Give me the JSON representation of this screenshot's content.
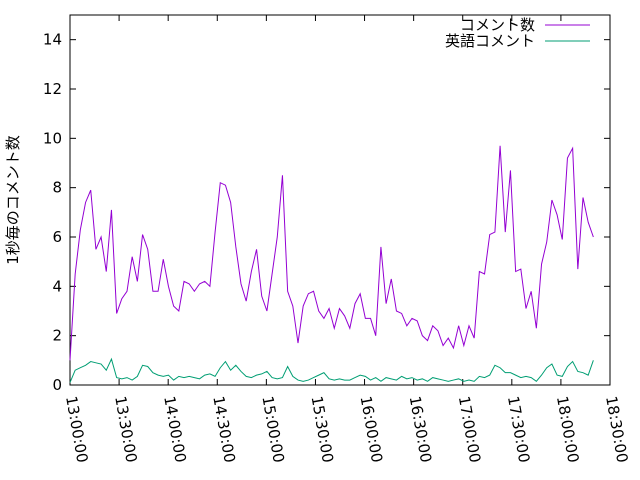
{
  "chart_data": {
    "type": "line",
    "ylabel": "1秒毎のコメント数",
    "x": [
      "13:00:00",
      "13:03:10",
      "13:06:20",
      "13:09:30",
      "13:12:40",
      "13:15:50",
      "13:19:00",
      "13:22:10",
      "13:25:20",
      "13:28:30",
      "13:31:40",
      "13:34:50",
      "13:38:00",
      "13:41:10",
      "13:44:20",
      "13:47:30",
      "13:50:40",
      "13:53:50",
      "13:57:00",
      "14:00:10",
      "14:03:20",
      "14:06:30",
      "14:09:40",
      "14:12:50",
      "14:16:00",
      "14:19:10",
      "14:22:20",
      "14:25:30",
      "14:28:40",
      "14:31:50",
      "14:35:00",
      "14:38:10",
      "14:41:20",
      "14:44:30",
      "14:47:40",
      "14:50:50",
      "14:54:00",
      "14:57:10",
      "15:00:20",
      "15:03:30",
      "15:06:40",
      "15:09:50",
      "15:13:00",
      "15:16:10",
      "15:19:20",
      "15:22:30",
      "15:25:40",
      "15:28:50",
      "15:32:00",
      "15:35:10",
      "15:38:20",
      "15:41:30",
      "15:44:40",
      "15:47:50",
      "15:51:00",
      "15:54:10",
      "15:57:20",
      "16:00:30",
      "16:03:40",
      "16:06:50",
      "16:10:00",
      "16:13:10",
      "16:16:20",
      "16:19:30",
      "16:22:40",
      "16:25:50",
      "16:29:00",
      "16:32:10",
      "16:35:20",
      "16:38:30",
      "16:41:40",
      "16:44:50",
      "16:48:00",
      "16:51:10",
      "16:54:20",
      "16:57:30",
      "17:00:40",
      "17:03:50",
      "17:07:00",
      "17:10:10",
      "17:13:20",
      "17:16:30",
      "17:19:40",
      "17:22:50",
      "17:26:00",
      "17:29:10",
      "17:32:20",
      "17:35:30",
      "17:38:40",
      "17:41:50",
      "17:45:00",
      "17:48:10",
      "17:51:20",
      "17:54:30",
      "17:57:40",
      "18:00:50",
      "18:04:00",
      "18:07:10",
      "18:10:20",
      "18:13:30",
      "18:16:40",
      "18:19:50"
    ],
    "series": [
      {
        "name": "コメント数",
        "color": "#9400d3",
        "values": [
          1.0,
          4.5,
          6.3,
          7.4,
          7.9,
          5.5,
          6.0,
          4.6,
          7.1,
          2.9,
          3.5,
          3.8,
          5.2,
          4.2,
          6.1,
          5.5,
          3.8,
          3.8,
          5.1,
          4.0,
          3.2,
          3.0,
          4.2,
          4.1,
          3.8,
          4.1,
          4.2,
          4.0,
          6.2,
          8.2,
          8.1,
          7.4,
          5.6,
          4.1,
          3.4,
          4.6,
          5.5,
          3.6,
          3.0,
          4.5,
          6.0,
          8.5,
          3.8,
          3.2,
          1.7,
          3.2,
          3.7,
          3.8,
          3.0,
          2.7,
          3.1,
          2.3,
          3.1,
          2.8,
          2.3,
          3.3,
          3.7,
          2.7,
          2.7,
          2.0,
          5.6,
          3.3,
          4.3,
          3.0,
          2.9,
          2.4,
          2.7,
          2.6,
          2.0,
          1.8,
          2.4,
          2.2,
          1.6,
          1.9,
          1.5,
          2.4,
          1.6,
          2.4,
          1.9,
          4.6,
          4.5,
          6.1,
          6.2,
          9.7,
          6.2,
          8.7,
          4.6,
          4.7,
          3.1,
          3.8,
          2.3,
          4.9,
          5.8,
          7.5,
          6.9,
          5.9,
          9.2,
          9.6,
          4.7,
          7.6,
          6.6,
          6.0
        ]
      },
      {
        "name": "英語コメント",
        "color": "#009e73",
        "values": [
          0.1,
          0.6,
          0.7,
          0.8,
          0.95,
          0.9,
          0.85,
          0.6,
          1.05,
          0.3,
          0.25,
          0.3,
          0.2,
          0.35,
          0.8,
          0.75,
          0.5,
          0.4,
          0.35,
          0.4,
          0.2,
          0.35,
          0.3,
          0.35,
          0.3,
          0.25,
          0.4,
          0.45,
          0.35,
          0.7,
          0.95,
          0.6,
          0.8,
          0.55,
          0.35,
          0.3,
          0.4,
          0.45,
          0.55,
          0.3,
          0.25,
          0.3,
          0.75,
          0.35,
          0.2,
          0.15,
          0.2,
          0.3,
          0.4,
          0.5,
          0.25,
          0.2,
          0.25,
          0.2,
          0.2,
          0.3,
          0.4,
          0.35,
          0.2,
          0.3,
          0.15,
          0.3,
          0.25,
          0.2,
          0.35,
          0.25,
          0.3,
          0.2,
          0.25,
          0.15,
          0.3,
          0.25,
          0.2,
          0.15,
          0.2,
          0.25,
          0.15,
          0.2,
          0.15,
          0.35,
          0.3,
          0.4,
          0.8,
          0.7,
          0.5,
          0.5,
          0.4,
          0.3,
          0.35,
          0.3,
          0.15,
          0.4,
          0.7,
          0.85,
          0.4,
          0.35,
          0.75,
          0.95,
          0.55,
          0.5,
          0.4,
          1.0
        ]
      }
    ],
    "xlim": [
      "13:00:00",
      "18:30:00"
    ],
    "xticks": [
      "13:00:00",
      "13:30:00",
      "14:00:00",
      "14:30:00",
      "15:00:00",
      "15:30:00",
      "16:00:00",
      "16:30:00",
      "17:00:00",
      "17:30:00",
      "18:00:00",
      "18:30:00"
    ],
    "ylim": [
      0,
      15
    ],
    "yticks": [
      0,
      2,
      4,
      6,
      8,
      10,
      12,
      14
    ],
    "legend": "top right"
  }
}
